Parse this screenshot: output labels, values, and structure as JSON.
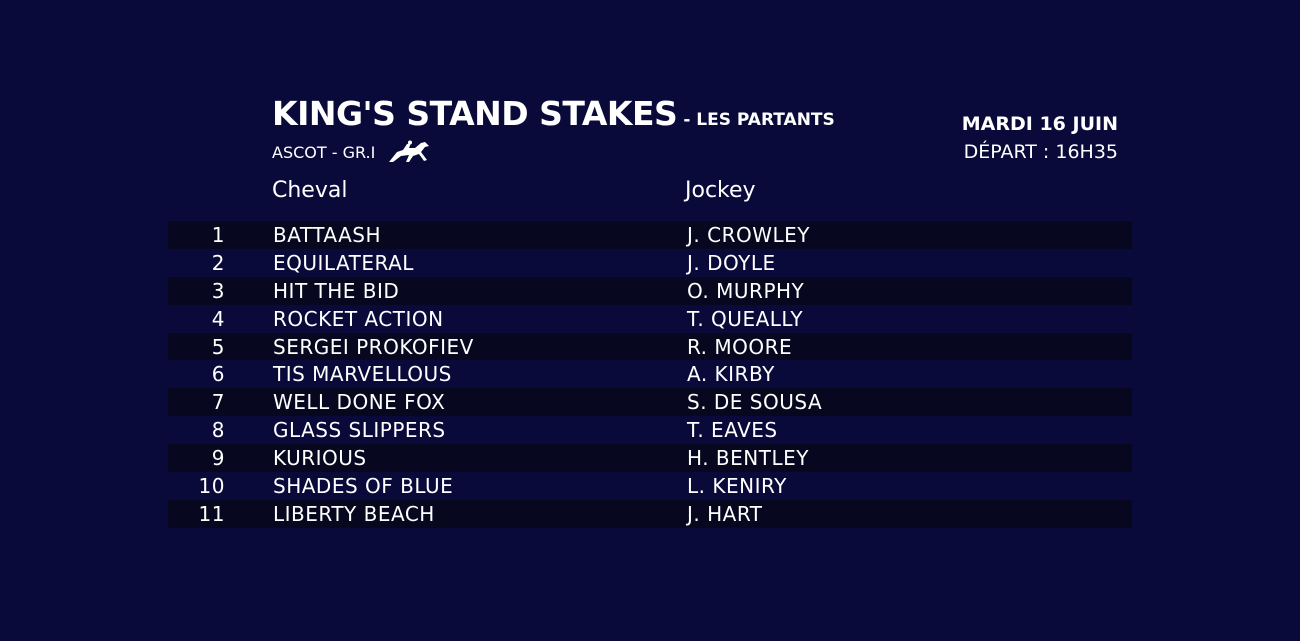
{
  "header": {
    "title": "KING'S STAND STAKES",
    "subtitle": "- LES PARTANTS",
    "venue": "ASCOT - GR.I",
    "icon": "horse-racing-icon",
    "date": "MARDI 16 JUIN",
    "departure": "DÉPART : 16H35"
  },
  "columns": {
    "horse": "Cheval",
    "jockey": "Jockey"
  },
  "runners": [
    {
      "num": "1",
      "horse": "BATTAASH",
      "jockey": "J. CROWLEY"
    },
    {
      "num": "2",
      "horse": "EQUILATERAL",
      "jockey": "J. DOYLE"
    },
    {
      "num": "3",
      "horse": "HIT THE BID",
      "jockey": "O. MURPHY"
    },
    {
      "num": "4",
      "horse": "ROCKET ACTION",
      "jockey": "T. QUEALLY"
    },
    {
      "num": "5",
      "horse": "SERGEI PROKOFIEV",
      "jockey": "R. MOORE"
    },
    {
      "num": "6",
      "horse": "TIS MARVELLOUS",
      "jockey": "A. KIRBY"
    },
    {
      "num": "7",
      "horse": "WELL DONE FOX",
      "jockey": "S. DE SOUSA"
    },
    {
      "num": "8",
      "horse": "GLASS SLIPPERS",
      "jockey": "T. EAVES"
    },
    {
      "num": "9",
      "horse": "KURIOUS",
      "jockey": "H. BENTLEY"
    },
    {
      "num": "10",
      "horse": "SHADES OF BLUE",
      "jockey": "L. KENIRY"
    },
    {
      "num": "11",
      "horse": "LIBERTY BEACH",
      "jockey": "J. HART"
    }
  ],
  "colors": {
    "background": "#0a0a3a",
    "row_dark": "#07071f",
    "text": "#ffffff"
  }
}
